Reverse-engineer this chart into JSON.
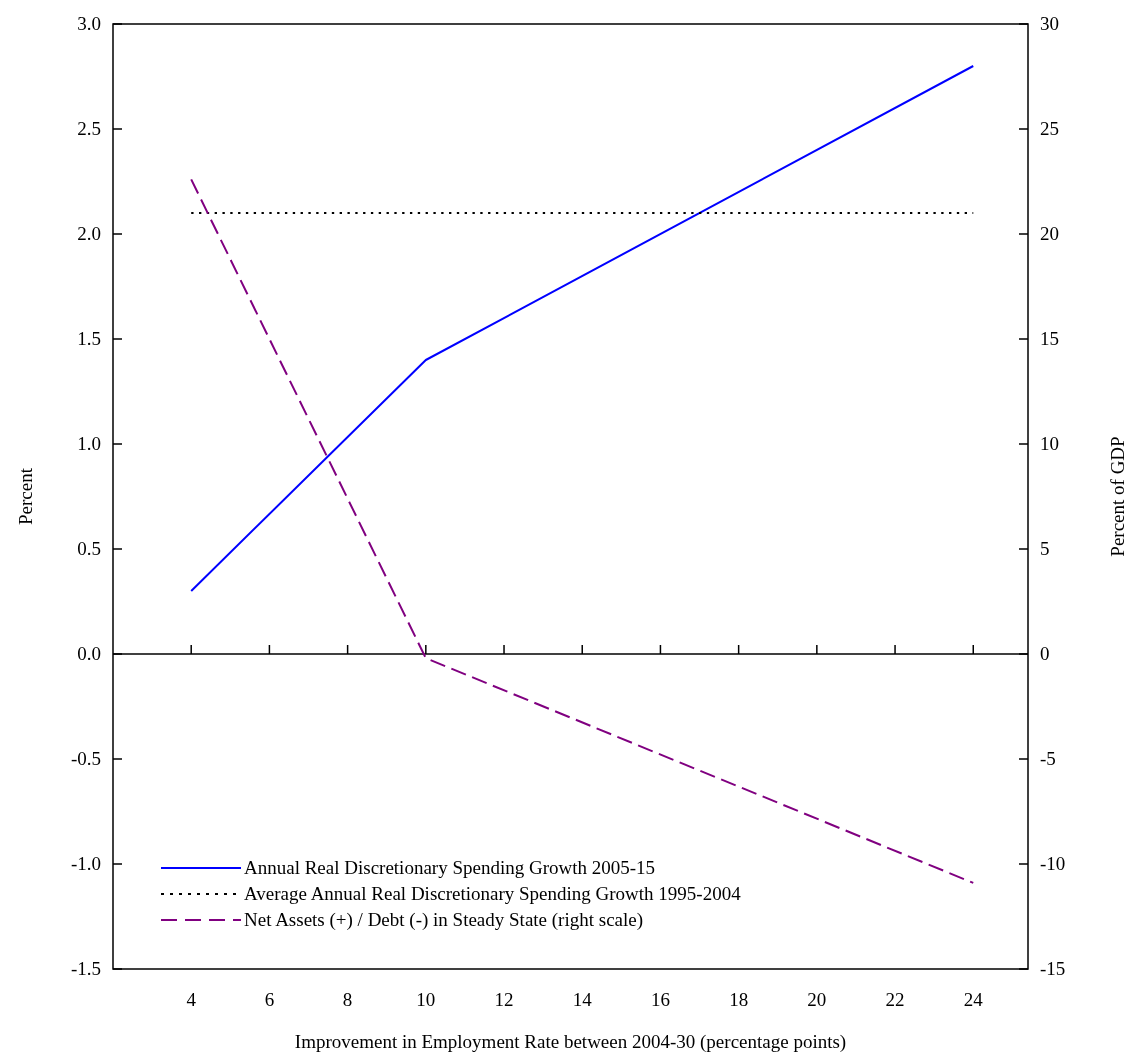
{
  "chart_data": {
    "type": "line",
    "xlabel": "Improvement in Employment Rate between 2004-30 (percentage points)",
    "ylabel": "Percent",
    "y2label": "Percent of GDP",
    "xlim": [
      2,
      25.4
    ],
    "xticks": [
      4,
      6,
      8,
      10,
      12,
      14,
      16,
      18,
      20,
      22,
      24
    ],
    "ylim": [
      -1.5,
      3.0
    ],
    "yticks": [
      {
        "value": -1.5,
        "label": "-1.5"
      },
      {
        "value": -1.0,
        "label": "-1.0"
      },
      {
        "value": -0.5,
        "label": "-0.5"
      },
      {
        "value": 0,
        "label": "0.0"
      },
      {
        "value": 0.5,
        "label": "0.5"
      },
      {
        "value": 1.0,
        "label": "1.0"
      },
      {
        "value": 1.5,
        "label": "1.5"
      },
      {
        "value": 2.0,
        "label": "2.0"
      },
      {
        "value": 2.5,
        "label": "2.5"
      },
      {
        "value": 3.0,
        "label": "3.0"
      }
    ],
    "y2lim": [
      -15,
      30
    ],
    "y2ticks": [
      -15,
      -10,
      -5,
      0,
      5,
      10,
      15,
      20,
      25,
      30
    ],
    "grid": false,
    "legend": "bottom left",
    "series": [
      {
        "name": "Annual Real Discretionary Spending Growth 2005-15",
        "color": "#0000ff",
        "line_style": "solid",
        "x": [
          4,
          10,
          24
        ],
        "values": [
          0.3,
          1.4,
          2.8
        ]
      },
      {
        "name": "Average Annual Real Discretionary Spending Growth 1995-2004",
        "color": "#000000",
        "line_style": "dotted",
        "x": [
          4,
          24
        ],
        "values": [
          2.1,
          2.1
        ]
      },
      {
        "name": "Net Assets (+) / Debt (-) in Steady State (right scale)",
        "color": "#800080",
        "line_style": "dashed",
        "axis": "y2",
        "x": [
          4,
          10,
          24
        ],
        "values": [
          22.6,
          -0.2,
          -10.9
        ]
      }
    ]
  }
}
